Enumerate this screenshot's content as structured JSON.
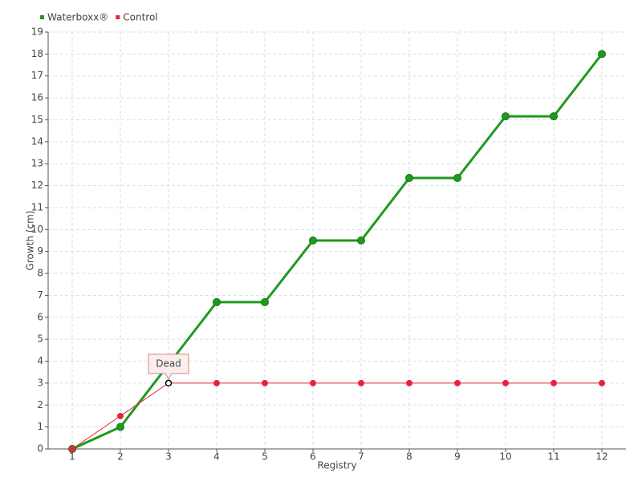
{
  "chart_data": {
    "type": "line",
    "x": [
      1,
      2,
      3,
      4,
      5,
      6,
      7,
      8,
      9,
      10,
      11,
      12
    ],
    "xlim": [
      0.5,
      12.5
    ],
    "xticks": [
      1,
      2,
      3,
      4,
      5,
      6,
      7,
      8,
      9,
      10,
      11,
      12
    ],
    "ylim": [
      0,
      19
    ],
    "yticks": [
      0,
      1,
      2,
      3,
      4,
      5,
      6,
      7,
      8,
      9,
      10,
      11,
      12,
      13,
      14,
      15,
      16,
      17,
      18,
      19
    ],
    "x_label": "Registry",
    "y_label": "Growth (cm)",
    "grid": true,
    "legend": "top-left",
    "series": [
      {
        "name": "Waterboxx®",
        "color": "#1e9a1e",
        "values": [
          0,
          1,
          3.85,
          6.69,
          6.69,
          9.5,
          9.5,
          12.35,
          12.35,
          15.16,
          15.16,
          18
        ]
      },
      {
        "name": "Control",
        "color": "#e3263a",
        "values": [
          0,
          1.5,
          3,
          3,
          3,
          3,
          3,
          3,
          3,
          3,
          3,
          3
        ]
      }
    ],
    "annotations": [
      {
        "text": "Dead",
        "x": 3,
        "y": 3
      }
    ]
  }
}
